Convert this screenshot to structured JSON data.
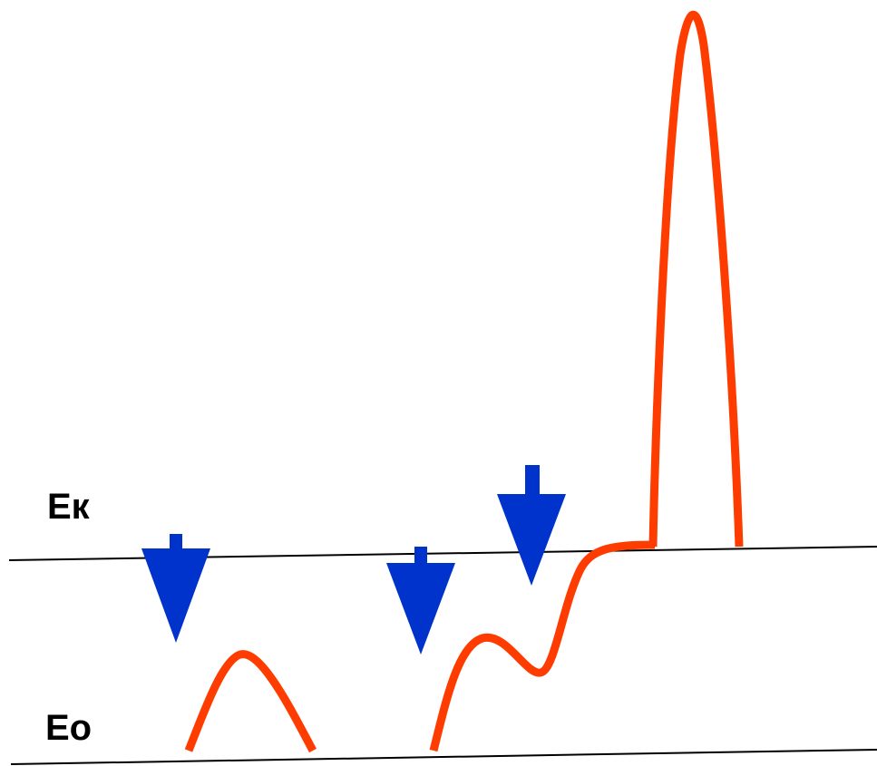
{
  "labels": {
    "threshold": "Ек",
    "baseline": "Ео"
  },
  "colors": {
    "line": "#000000",
    "curve": "#ff3c00",
    "arrow": "#0033cc",
    "text": "#000000"
  },
  "icons": [
    "down-arrow-icon"
  ]
}
